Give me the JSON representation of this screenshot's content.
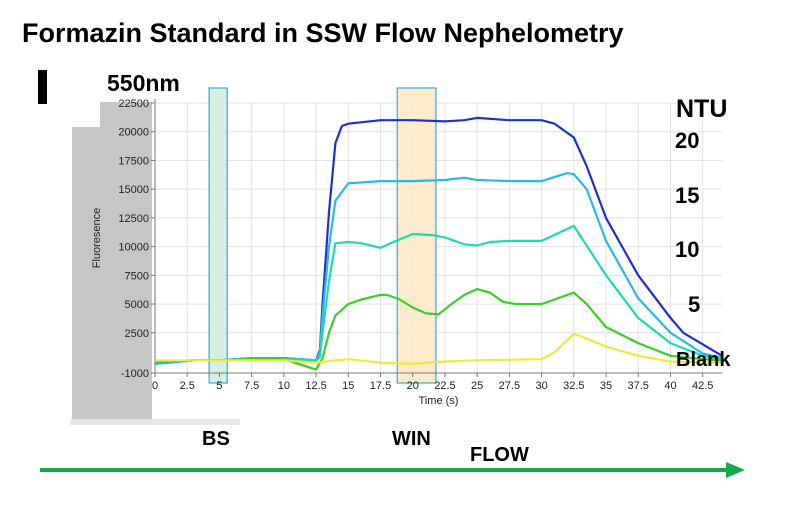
{
  "header": {
    "title": "Formazin Standard in SSW Flow Nephelometry",
    "wavelength": "550nm"
  },
  "right_labels": {
    "unit": "NTU",
    "level_20": "20",
    "level_15": "15",
    "level_10": "10",
    "level_5": "5",
    "blank": "Blank"
  },
  "bottom_labels": {
    "bs": "BS",
    "win": "WIN",
    "flow": "FLOW"
  },
  "colors": {
    "flow_arrow": "#13a84c",
    "bs_window": "#cdeedc",
    "win_window": "#fbe9c4",
    "window_border": "#33a9dd"
  },
  "chart_data": {
    "type": "line",
    "xlabel": "Time (s)",
    "ylabel": "Fluoresence",
    "xlim": [
      0,
      44
    ],
    "ylim": [
      -1000,
      22500
    ],
    "x_ticks": [
      0,
      2.5,
      5,
      7.5,
      10,
      12.5,
      15,
      17.5,
      20,
      22.5,
      25,
      27.5,
      30,
      32.5,
      35,
      37.5,
      40,
      42.5
    ],
    "y_ticks": [
      -1000,
      2500,
      5000,
      7500,
      10000,
      12500,
      15000,
      17500,
      20000,
      22500
    ],
    "grid": true,
    "highlight_windows": [
      {
        "label": "BS",
        "x": [
          4.2,
          5.6
        ]
      },
      {
        "label": "WIN",
        "x": [
          18.8,
          21.8
        ]
      }
    ],
    "series": [
      {
        "name": "20",
        "color": "#1f2fcf",
        "x": [
          0,
          3,
          5,
          7.5,
          10,
          12.5,
          12.8,
          13,
          13.5,
          14,
          14.5,
          15,
          17.5,
          20,
          22.5,
          24,
          25,
          27.5,
          30,
          31,
          32.5,
          33.5,
          35,
          37.5,
          40,
          41,
          42.5,
          44
        ],
        "y": [
          -200,
          100,
          100,
          300,
          300,
          100,
          1000,
          5000,
          13000,
          19000,
          20500,
          20700,
          21000,
          21000,
          20900,
          21000,
          21200,
          21000,
          21000,
          20700,
          19500,
          17000,
          12500,
          7500,
          3800,
          2500,
          1500,
          500
        ]
      },
      {
        "name": "15",
        "color": "#27b8e8",
        "x": [
          0,
          3,
          5,
          7.5,
          10,
          12.5,
          12.8,
          13,
          13.5,
          14,
          15,
          17.5,
          20,
          22.5,
          24,
          25,
          27.5,
          30,
          32,
          32.5,
          33.5,
          35,
          37.5,
          40,
          42.5,
          44
        ],
        "y": [
          -200,
          100,
          100,
          300,
          300,
          100,
          800,
          4000,
          10000,
          14000,
          15500,
          15700,
          15700,
          15800,
          16000,
          15800,
          15700,
          15700,
          16400,
          16300,
          15000,
          10500,
          5500,
          2500,
          700,
          300
        ]
      },
      {
        "name": "10",
        "color": "#1ed8b0",
        "x": [
          0,
          3,
          5,
          7.5,
          10,
          12.5,
          12.8,
          13,
          13.5,
          14,
          15,
          16,
          17.5,
          18.5,
          20,
          21.5,
          22.5,
          24,
          25,
          26,
          27.5,
          30,
          32.5,
          35,
          37.5,
          40,
          42.5,
          44
        ],
        "y": [
          0,
          100,
          100,
          200,
          200,
          100,
          400,
          2500,
          7000,
          10300,
          10400,
          10300,
          9900,
          10400,
          11100,
          11000,
          10800,
          10200,
          10100,
          10400,
          10500,
          10500,
          11800,
          7500,
          3800,
          1600,
          500,
          200
        ]
      },
      {
        "name": "5",
        "color": "#3ccc2a",
        "x": [
          0,
          3,
          5,
          7.5,
          10,
          12.5,
          13,
          13.5,
          14,
          15,
          16,
          17.5,
          18,
          19,
          20,
          21,
          22,
          23,
          24,
          25,
          26,
          27,
          28,
          30,
          31,
          32.5,
          33.5,
          35,
          37.5,
          40,
          42.5,
          44
        ],
        "y": [
          0,
          100,
          100,
          200,
          200,
          -700,
          300,
          2500,
          4000,
          5000,
          5400,
          5800,
          5800,
          5400,
          4700,
          4200,
          4100,
          5000,
          5800,
          6300,
          6000,
          5200,
          5000,
          5000,
          5400,
          6000,
          5000,
          3000,
          1600,
          500,
          200,
          100
        ]
      },
      {
        "name": "Blank",
        "color": "#f0e83a",
        "x": [
          0,
          3,
          5,
          7.5,
          10,
          12.5,
          14,
          15,
          17.5,
          20,
          22.5,
          25,
          27.5,
          30,
          31,
          32.5,
          33.5,
          35,
          37.5,
          40,
          42.5,
          44
        ],
        "y": [
          100,
          100,
          100,
          100,
          100,
          -100,
          100,
          200,
          -100,
          -200,
          0,
          100,
          150,
          200,
          800,
          2400,
          2000,
          1300,
          500,
          0,
          -100,
          -100
        ]
      }
    ]
  }
}
